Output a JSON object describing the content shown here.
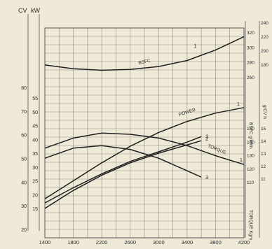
{
  "chart_data": {
    "type": "line",
    "x_ticks": [
      1400,
      1800,
      2200,
      2600,
      3000,
      3400,
      3800,
      4200
    ],
    "xlim": [
      1400,
      4200
    ],
    "axes": {
      "cv": {
        "label": "CV",
        "ticks": [
          20,
          30,
          40,
          50,
          60,
          70,
          80
        ]
      },
      "kw": {
        "label": "kW",
        "ticks": [
          15,
          20,
          25,
          30,
          35,
          40,
          45,
          50,
          55
        ]
      },
      "bsfc_g": {
        "label": "BSFC g/kWh",
        "ticks": [
          260,
          280,
          300,
          320
        ]
      },
      "bsfc_r": {
        "label": "g/CV h",
        "ticks": [
          180,
          200,
          220,
          240
        ]
      },
      "torque_kgm": {
        "label": "TORQUE Kgm",
        "ticks": [
          11,
          12,
          13,
          14,
          15
        ]
      },
      "torque_nm": {
        "label": "Nm",
        "ticks": [
          110,
          120,
          130,
          140,
          150
        ]
      }
    },
    "curve_labels": {
      "bsfc": "BSFC",
      "power": "POWER",
      "torque": "TORQUE"
    },
    "series": [
      {
        "name": "BSFC",
        "marker": "1",
        "x": [
          1400,
          1800,
          2200,
          2600,
          3000,
          3400,
          3800,
          4200
        ],
        "y": [
          276,
          271,
          269,
          270,
          274,
          282,
          296,
          314
        ]
      },
      {
        "name": "POWER",
        "marker": "1",
        "x": [
          1400,
          1800,
          2200,
          2600,
          3000,
          3400,
          3800,
          4200
        ],
        "y": [
          18.5,
          25,
          31.5,
          37.5,
          42.5,
          46.5,
          49.5,
          51.5
        ]
      },
      {
        "name": "POWER",
        "marker": "2",
        "x": [
          1400,
          1800,
          2200,
          2600,
          3000,
          3400,
          3600
        ],
        "y": [
          15,
          21.5,
          27,
          31.5,
          35,
          38,
          39.5
        ]
      },
      {
        "name": "TORQUE",
        "marker": "1",
        "x": [
          1400,
          1800,
          2200,
          2600,
          3000,
          3400,
          3800,
          4200
        ],
        "y": [
          13.4,
          14.2,
          14.6,
          14.5,
          14.2,
          13.6,
          12.8,
          12.1
        ]
      },
      {
        "name": "TORQUE",
        "marker": "3",
        "x": [
          1400,
          1800,
          2200,
          2600,
          3000,
          3400,
          3600
        ],
        "y": [
          12.6,
          13.4,
          13.6,
          13.3,
          12.6,
          11.6,
          11.1
        ]
      },
      {
        "name": "POWER",
        "marker": "3",
        "x": [
          1400,
          1800,
          2200,
          2600,
          3000,
          3400,
          3600
        ],
        "y": [
          17,
          22.5,
          27.5,
          32,
          35.5,
          39,
          41
        ]
      }
    ],
    "markers": [
      "1",
      "1",
      "2",
      "1",
      "3",
      "3"
    ]
  }
}
